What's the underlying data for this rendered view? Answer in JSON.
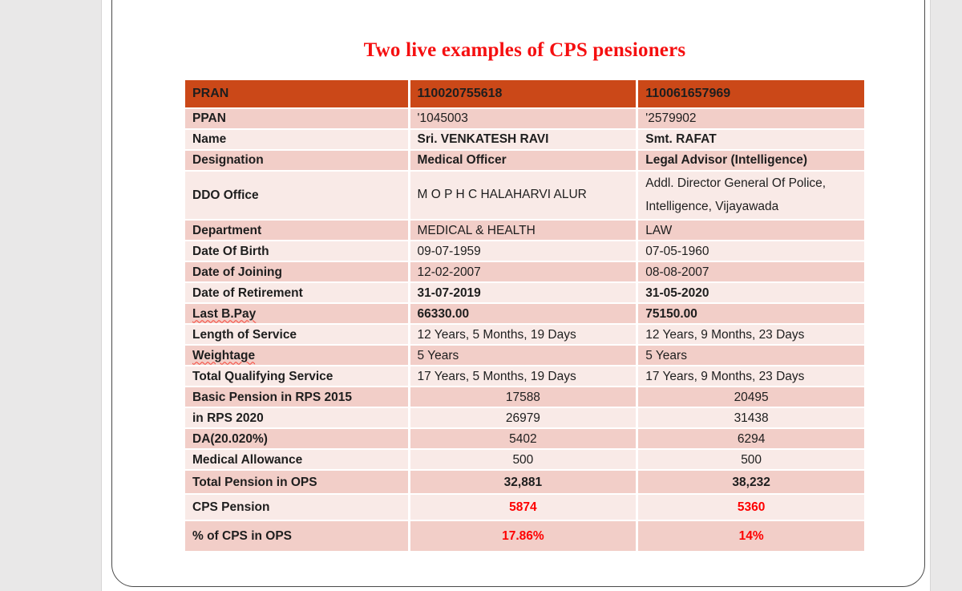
{
  "page": {
    "title": "Two live examples of CPS pensioners"
  },
  "colors": {
    "header_bg": "#cb4818",
    "band_dark": "#f2cec8",
    "band_light": "#f9eae7",
    "title_red": "#f50f10",
    "value_red": "#fe0000",
    "panel_gray": "#e9e8e8"
  },
  "table": {
    "header": {
      "label": "PRAN",
      "col1": "110020755618",
      "col2": "110061657969"
    },
    "rows": [
      {
        "label": "PPAN",
        "col1": "'1045003",
        "col2": "'2579902"
      },
      {
        "label": "Name",
        "col1": "Sri. VENKATESH RAVI",
        "col2": "Smt. RAFAT"
      },
      {
        "label": "Designation",
        "col1": "Medical Officer",
        "col2": "Legal Advisor (Intelligence)"
      },
      {
        "label": "DDO Office",
        "col1": "M O P H C HALAHARVI ALUR",
        "col2": "Addl. Director General Of Police, Intelligence, Vijayawada"
      },
      {
        "label": "Department",
        "col1": "MEDICAL & HEALTH",
        "col2": "LAW"
      },
      {
        "label": "Date Of Birth",
        "col1": "09-07-1959",
        "col2": "07-05-1960"
      },
      {
        "label": "Date of Joining",
        "col1": "12-02-2007",
        "col2": "08-08-2007"
      },
      {
        "label": "Date of Retirement",
        "col1": "31-07-2019",
        "col2": "31-05-2020"
      },
      {
        "label": "Last B.Pay",
        "col1": "66330.00",
        "col2": "75150.00"
      },
      {
        "label": "Length of Service",
        "col1": "12 Years, 5 Months, 19 Days",
        "col2": "12 Years, 9 Months, 23 Days"
      },
      {
        "label": "Weightage",
        "col1": "5 Years",
        "col2": "5 Years"
      },
      {
        "label": "Total Qualifying Service",
        "col1": "17 Years, 5 Months, 19 Days",
        "col2": "17 Years, 9 Months, 23 Days"
      },
      {
        "label": "Basic Pension in RPS 2015",
        "col1": "17588",
        "col2": "20495"
      },
      {
        "label": "in RPS 2020",
        "col1": "26979",
        "col2": "31438"
      },
      {
        "label": "DA(20.020%)",
        "col1": "5402",
        "col2": "6294"
      },
      {
        "label": "Medical Allowance",
        "col1": "500",
        "col2": "500"
      },
      {
        "label": "Total Pension in OPS",
        "col1": "32,881",
        "col2": "38,232"
      },
      {
        "label": "CPS Pension",
        "col1": "5874",
        "col2": "5360"
      },
      {
        "label": "% of CPS in OPS",
        "col1": "17.86%",
        "col2": "14%"
      }
    ]
  }
}
